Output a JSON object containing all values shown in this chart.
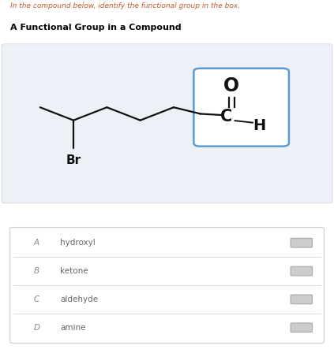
{
  "title_question": "In the compound below, identify the functional group in the box.",
  "title_chart": "A Functional Group in a Compound",
  "chart_bg": "#edf1f7",
  "options": [
    {
      "letter": "A",
      "text": "hydroxyl"
    },
    {
      "letter": "B",
      "text": "ketone"
    },
    {
      "letter": "C",
      "text": "aldehyde"
    },
    {
      "letter": "D",
      "text": "amine"
    }
  ],
  "question_color": "#c05a2a",
  "title_color": "#000000",
  "option_text_color": "#666666",
  "box_border_color": "#5b9bd5",
  "line_color": "#111111",
  "radio_color": "#cccccc",
  "radio_border_color": "#aaaaaa"
}
